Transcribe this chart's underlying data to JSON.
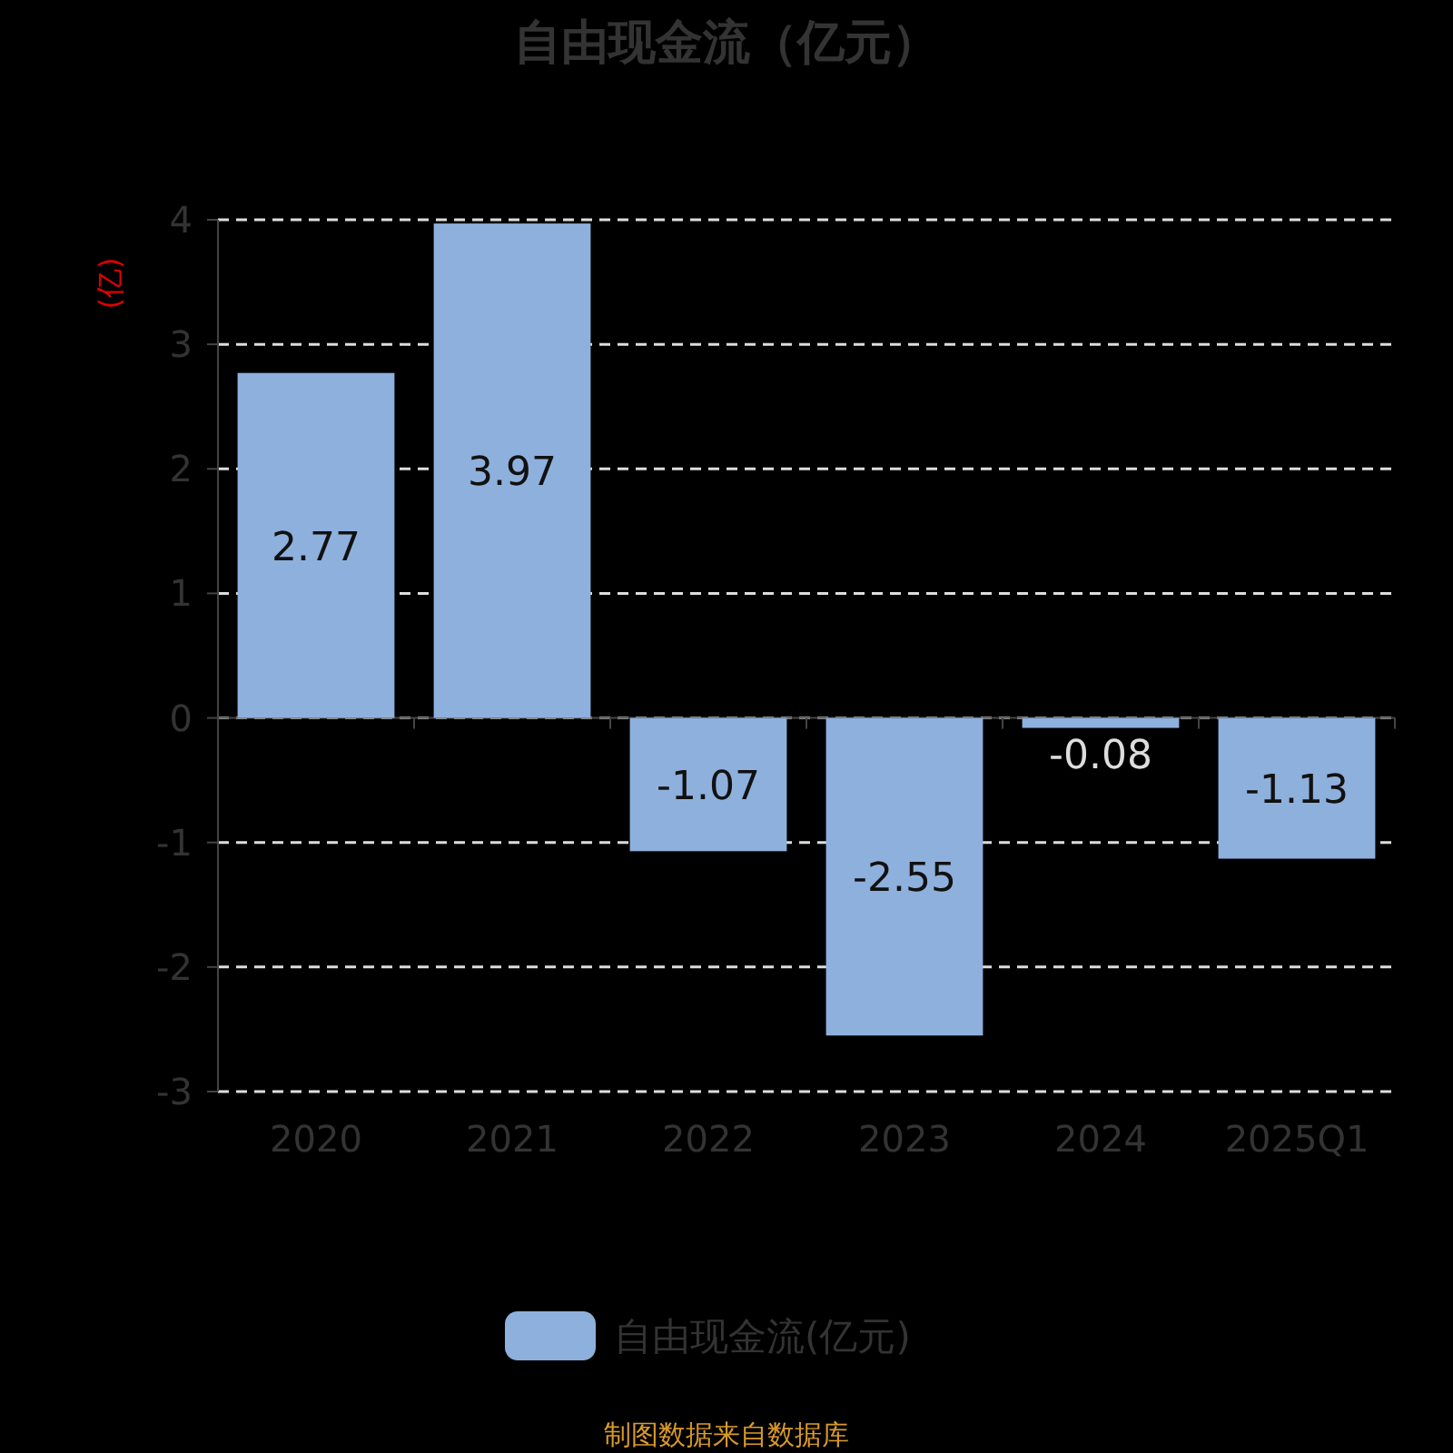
{
  "chart_data": {
    "type": "bar",
    "title": "自由现金流（亿元）",
    "ylabel": "(亿)",
    "categories": [
      "2020",
      "2021",
      "2022",
      "2023",
      "2024",
      "2025Q1"
    ],
    "series": [
      {
        "name": "自由现金流(亿元)",
        "color": "#8eb0dc",
        "values": [
          2.77,
          3.97,
          -1.07,
          -2.55,
          -0.08,
          -1.13
        ]
      }
    ],
    "ylim": [
      -3,
      4
    ],
    "yticks": [
      -3,
      -2,
      -1,
      0,
      1,
      2,
      3,
      4
    ],
    "grid": "y",
    "legend": "bottom",
    "data_labels": true,
    "annotations": [
      "制图数据来自数据库"
    ]
  }
}
